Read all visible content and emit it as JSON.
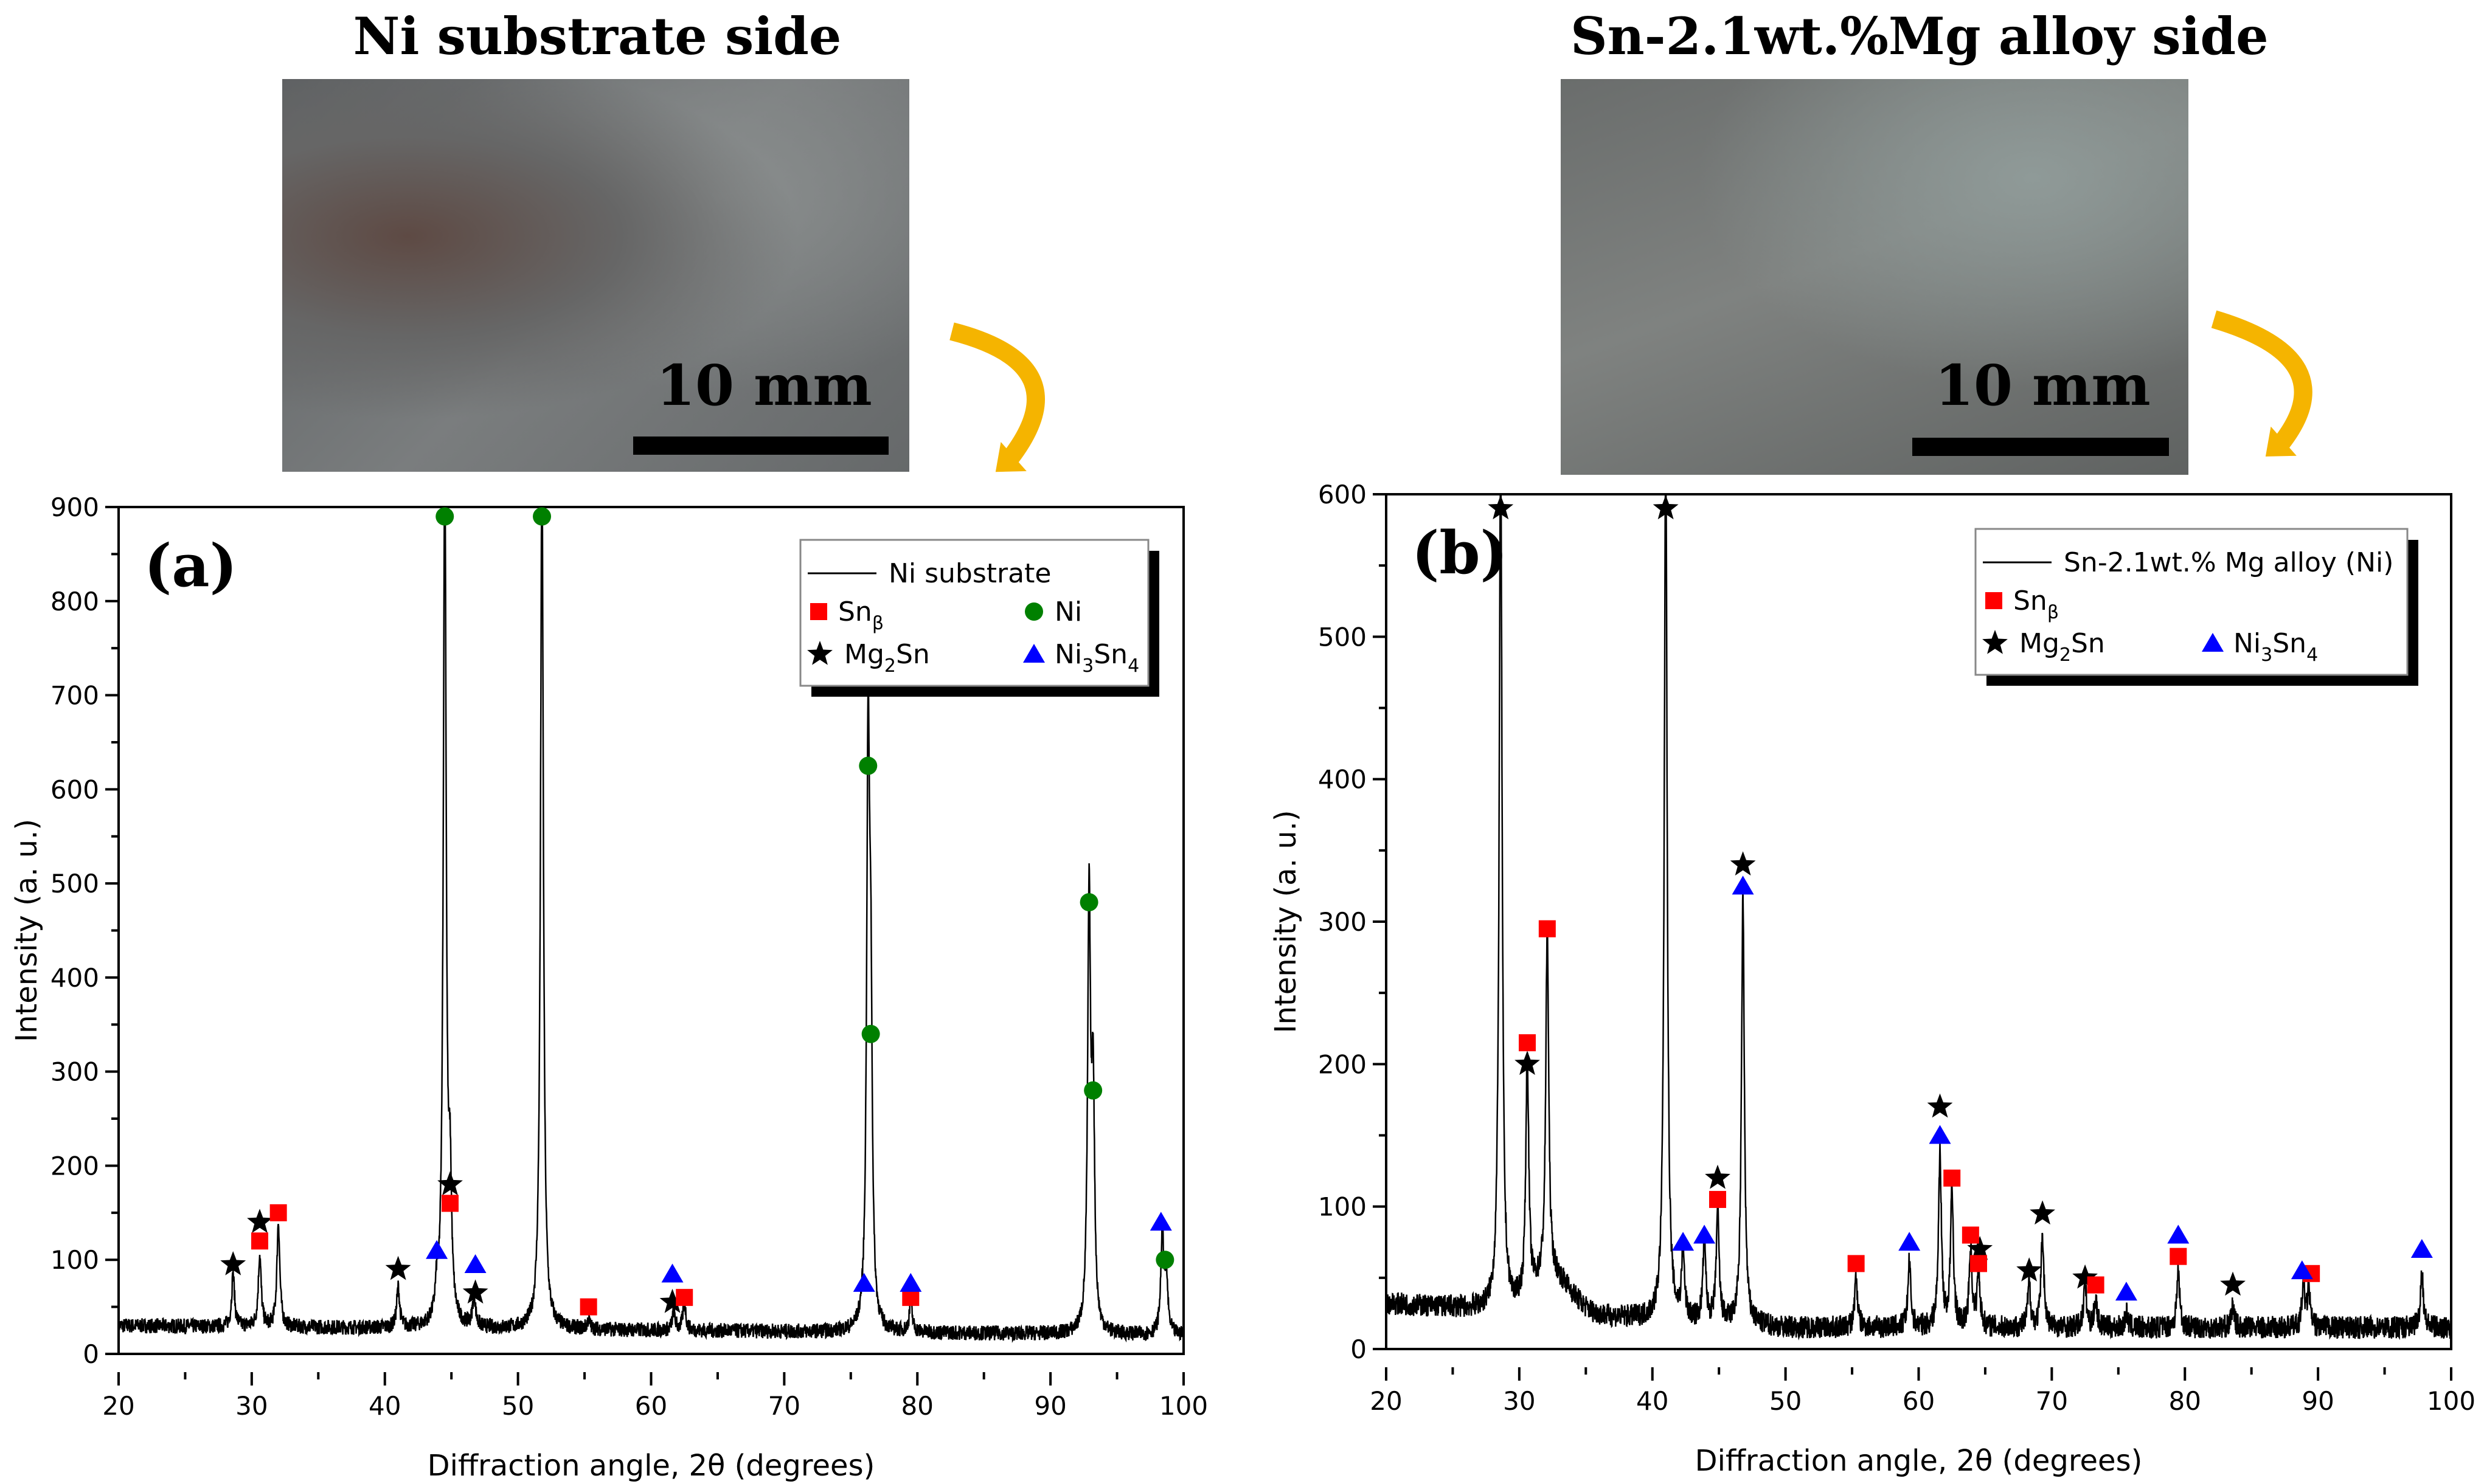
{
  "titles": {
    "left": "Ni substrate side",
    "right": "Sn-2.1wt.%Mg alloy side"
  },
  "scale_bar_label": "10 mm",
  "colors": {
    "sn_beta": "#ff0000",
    "ni": "#008000",
    "mg2sn": "#000000",
    "ni3sn4": "#0000ff",
    "arrow": "#f5b400"
  },
  "chart_data": [
    {
      "type": "line",
      "panel_label": "(a)",
      "xlabel": "Diffraction angle, 2θ (degrees)",
      "ylabel": "Intensity (a. u.)",
      "xlim": [
        20,
        100
      ],
      "ylim": [
        0,
        900
      ],
      "xticks": [
        "20",
        "30",
        "40",
        "50",
        "60",
        "70",
        "80",
        "90",
        "100"
      ],
      "yticks": [
        "0",
        "100",
        "200",
        "300",
        "400",
        "500",
        "600",
        "700",
        "800",
        "900"
      ],
      "legend": {
        "position": "top-right",
        "line": "Ni substrate",
        "sn": "Sn",
        "sn_sub": "β",
        "ni": "Ni",
        "mg": "Mg",
        "mg_sub": "2",
        "mg_tail": "Sn",
        "nisn_a": "Ni",
        "nisn_sub1": "3",
        "nisn_b": "Sn",
        "nisn_sub2": "4"
      },
      "background": [
        30,
        20
      ],
      "peaks": [
        [
          28.6,
          85
        ],
        [
          30.6,
          105
        ],
        [
          32.0,
          140
        ],
        [
          41.0,
          70
        ],
        [
          43.9,
          55
        ],
        [
          44.5,
          950
        ],
        [
          44.9,
          160
        ],
        [
          46.7,
          60
        ],
        [
          51.8,
          950
        ],
        [
          55.3,
          35
        ],
        [
          61.7,
          45
        ],
        [
          62.5,
          55
        ],
        [
          76.3,
          620
        ],
        [
          76.5,
          330
        ],
        [
          79.5,
          55
        ],
        [
          92.9,
          475
        ],
        [
          93.2,
          270
        ],
        [
          98.4,
          130
        ],
        [
          98.7,
          80
        ]
      ],
      "markers": {
        "mg2sn": [
          [
            28.6,
            95
          ],
          [
            30.6,
            140
          ],
          [
            41.0,
            90
          ],
          [
            44.9,
            180
          ],
          [
            46.8,
            65
          ],
          [
            61.6,
            55
          ]
        ],
        "sn_beta": [
          [
            30.6,
            120
          ],
          [
            32.0,
            150
          ],
          [
            44.9,
            160
          ],
          [
            55.3,
            50
          ],
          [
            62.5,
            60
          ],
          [
            79.5,
            60
          ]
        ],
        "ni": [
          [
            44.5,
            890
          ],
          [
            51.8,
            890
          ],
          [
            76.3,
            625
          ],
          [
            76.5,
            340
          ],
          [
            92.9,
            480
          ],
          [
            93.2,
            280
          ],
          [
            98.6,
            100
          ]
        ],
        "ni3sn4": [
          [
            43.9,
            110
          ],
          [
            46.8,
            95
          ],
          [
            61.6,
            85
          ],
          [
            76.0,
            75
          ],
          [
            79.5,
            75
          ],
          [
            98.3,
            140
          ]
        ]
      }
    },
    {
      "type": "line",
      "panel_label": "(b)",
      "xlabel": "Diffraction angle, 2θ (degrees)",
      "ylabel": "Intensity (a. u.)",
      "xlim": [
        20,
        100
      ],
      "ylim": [
        0,
        600
      ],
      "xticks": [
        "20",
        "30",
        "40",
        "50",
        "60",
        "70",
        "80",
        "90",
        "100"
      ],
      "yticks": [
        "0",
        "100",
        "200",
        "300",
        "400",
        "500",
        "600"
      ],
      "legend": {
        "position": "top-right",
        "line": "Sn-2.1wt.% Mg alloy (Ni)",
        "sn": "Sn",
        "sn_sub": "β",
        "mg": "Mg",
        "mg_sub": "2",
        "mg_tail": "Sn",
        "nisn_a": "Ni",
        "nisn_sub1": "3",
        "nisn_b": "Sn",
        "nisn_sub2": "4"
      },
      "background": [
        32,
        15
      ],
      "peaks": [
        [
          28.6,
          640
        ],
        [
          30.6,
          195
        ],
        [
          32.1,
          270
        ],
        [
          41.0,
          640
        ],
        [
          42.3,
          65
        ],
        [
          43.9,
          75
        ],
        [
          44.9,
          95
        ],
        [
          46.8,
          315
        ],
        [
          55.3,
          50
        ],
        [
          59.3,
          60
        ],
        [
          61.6,
          137
        ],
        [
          62.5,
          110
        ],
        [
          63.9,
          70
        ],
        [
          64.5,
          55
        ],
        [
          68.3,
          45
        ],
        [
          69.3,
          80
        ],
        [
          72.5,
          45
        ],
        [
          73.3,
          35
        ],
        [
          75.6,
          25
        ],
        [
          79.5,
          55
        ],
        [
          83.6,
          30
        ],
        [
          88.9,
          45
        ],
        [
          89.3,
          40
        ],
        [
          97.8,
          55
        ]
      ],
      "markers": {
        "mg2sn": [
          [
            28.6,
            590
          ],
          [
            41.0,
            590
          ],
          [
            30.6,
            200
          ],
          [
            44.9,
            120
          ],
          [
            46.8,
            340
          ],
          [
            61.6,
            170
          ],
          [
            64.6,
            70
          ],
          [
            68.3,
            55
          ],
          [
            69.3,
            95
          ],
          [
            72.5,
            50
          ],
          [
            83.6,
            45
          ]
        ],
        "sn_beta": [
          [
            30.6,
            215
          ],
          [
            32.1,
            295
          ],
          [
            44.9,
            105
          ],
          [
            55.3,
            60
          ],
          [
            62.5,
            120
          ],
          [
            63.9,
            80
          ],
          [
            64.5,
            60
          ],
          [
            73.3,
            45
          ],
          [
            79.5,
            65
          ],
          [
            89.5,
            53
          ]
        ],
        "ni3sn4": [
          [
            42.3,
            75
          ],
          [
            43.9,
            80
          ],
          [
            46.8,
            325
          ],
          [
            59.3,
            75
          ],
          [
            61.6,
            150
          ],
          [
            75.6,
            40
          ],
          [
            79.5,
            80
          ],
          [
            88.8,
            55
          ],
          [
            97.8,
            70
          ]
        ]
      }
    }
  ]
}
